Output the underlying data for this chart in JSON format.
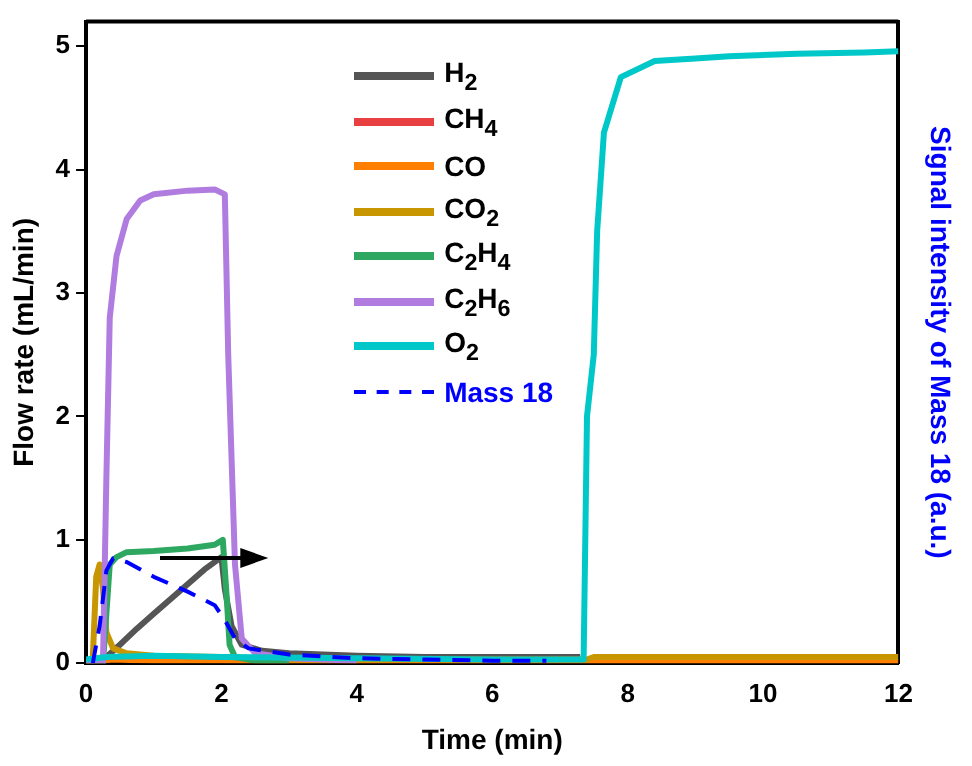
{
  "chart_data": {
    "type": "line",
    "xlabel": "Time (min)",
    "ylabel": "Flow rate (mL/min)",
    "y2label": "Signal intensity of Mass 18 (a.u.)",
    "xlim": [
      0,
      12
    ],
    "xticks": [
      0,
      2,
      4,
      6,
      8,
      10,
      12
    ],
    "ylim": [
      0,
      5.2
    ],
    "yticks": [
      0,
      1,
      2,
      3,
      4,
      5
    ],
    "grid": false,
    "legend": "top",
    "marker": "none",
    "line_style": "solid",
    "series": [
      {
        "name": "H$_{2}$",
        "color": "#555555",
        "x": [
          0.25,
          0.3,
          0.5,
          0.75,
          1,
          1.25,
          1.5,
          1.75,
          2,
          2.05,
          2.15,
          2.3,
          2.6,
          3,
          4,
          5,
          6,
          7,
          7.3
        ],
        "values": [
          0,
          0.05,
          0.15,
          0.28,
          0.4,
          0.52,
          0.64,
          0.76,
          0.86,
          0.6,
          0.3,
          0.15,
          0.1,
          0.08,
          0.06,
          0.05,
          0.05,
          0.05,
          0.05
        ]
      },
      {
        "name": "CH$_{4}$",
        "color": "#e84040"
      },
      {
        "name": "CO",
        "color": "#ff7f00",
        "x": [
          0,
          0.2,
          0.4,
          1,
          2,
          4,
          7.4,
          12
        ],
        "values": [
          0,
          0.02,
          0.03,
          0.02,
          0.02,
          0.01,
          0.01,
          0.01
        ]
      },
      {
        "name": "CO$_{2}$",
        "color": "#c89600",
        "x": [
          0,
          0.1,
          0.15,
          0.2,
          0.25,
          0.3,
          0.4,
          0.6,
          1,
          2,
          3,
          5,
          7.4,
          7.5,
          12
        ],
        "values": [
          0,
          0.05,
          0.7,
          0.8,
          0.6,
          0.25,
          0.12,
          0.08,
          0.06,
          0.05,
          0.03,
          0.03,
          0.03,
          0.05,
          0.05
        ]
      },
      {
        "name": "C$_{2}$H$_{4}$",
        "color": "#2ea860",
        "x": [
          0,
          0.25,
          0.3,
          0.35,
          0.45,
          0.6,
          1,
          1.5,
          1.9,
          2.02,
          2.07,
          2.12,
          2.2,
          2.5,
          3
        ],
        "values": [
          0,
          0,
          0.4,
          0.8,
          0.86,
          0.9,
          0.91,
          0.93,
          0.96,
          1.0,
          0.6,
          0.15,
          0.05,
          0.02,
          0.01
        ]
      },
      {
        "name": "C$_{2}$H$_{6}$",
        "color": "#b07ce0",
        "x": [
          0,
          0.25,
          0.3,
          0.35,
          0.45,
          0.6,
          0.8,
          1,
          1.5,
          1.9,
          2.05,
          2.1,
          2.2,
          2.3,
          2.5,
          3,
          4
        ],
        "values": [
          0,
          0,
          1.5,
          2.8,
          3.3,
          3.6,
          3.75,
          3.8,
          3.83,
          3.84,
          3.8,
          2.5,
          0.8,
          0.2,
          0.08,
          0.04,
          0.02
        ]
      },
      {
        "name": "O$_{2}$",
        "color": "#00c8c8",
        "x": [
          0,
          0.3,
          1,
          2,
          4,
          6,
          7.35,
          7.4,
          7.5,
          7.55,
          7.65,
          7.9,
          8.4,
          9,
          9.5,
          10.5,
          11.5,
          12
        ],
        "values": [
          0.03,
          0.05,
          0.06,
          0.05,
          0.04,
          0.03,
          0.03,
          2.0,
          2.5,
          3.5,
          4.3,
          4.75,
          4.88,
          4.9,
          4.92,
          4.94,
          4.95,
          4.96
        ]
      },
      {
        "name": "Mass 18",
        "color": "#0000ff",
        "line_style": "dashed",
        "x": [
          0.1,
          0.2,
          0.3,
          0.4,
          0.6,
          1,
          1.5,
          1.9,
          2.05,
          2.2,
          2.4,
          3,
          4,
          5,
          6,
          6.8
        ],
        "values": [
          0,
          0.3,
          0.75,
          0.85,
          0.82,
          0.7,
          0.58,
          0.47,
          0.35,
          0.2,
          0.12,
          0.07,
          0.04,
          0.03,
          0.02,
          0.02
        ]
      }
    ]
  }
}
